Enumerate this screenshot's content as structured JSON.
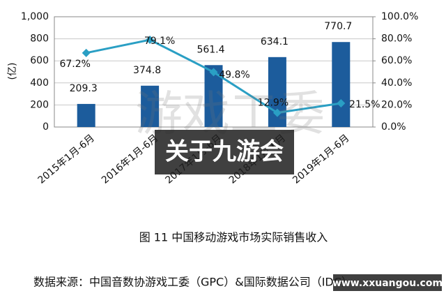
{
  "chart_data": {
    "type": "bar",
    "ylabel": "(亿)",
    "categories": [
      "2015年1月-6月",
      "2016年1月-6月",
      "2017年1月-6月",
      "2018年1月-6月",
      "2019年1月-6月"
    ],
    "series": [
      {
        "color": "#1c5c9c",
        "values": [
          209.3,
          374.8,
          561.4,
          634.1,
          770.7
        ]
      },
      {
        "type": "line",
        "axis": "y2",
        "color": "#2a9fc4",
        "values": [
          67.2,
          79.1,
          49.8,
          12.9,
          21.5
        ],
        "value_labels": [
          "67.2%",
          "79.1%",
          "49.8%",
          "12.9%",
          "21.5%"
        ]
      }
    ],
    "ylim": [
      0,
      1000
    ],
    "yticks": [
      0,
      200,
      400,
      600,
      800,
      {
        "value": 1000,
        "label": "1,000"
      }
    ],
    "y2lim": [
      0,
      100
    ],
    "y2ticks": [
      {
        "value": 0,
        "label": "0.0%"
      },
      {
        "value": 20,
        "label": "20.0%"
      },
      {
        "value": 40,
        "label": "40.0%"
      },
      {
        "value": 60,
        "label": "60.0%"
      },
      {
        "value": 80,
        "label": "80.0%"
      },
      {
        "value": 100,
        "label": "100.0%"
      }
    ],
    "grid": true,
    "caption": "图 11  中国移动游戏市场实际销售收入",
    "source": "数据来源：中国音数协游戏工委（GPC）&国际数据公司（IDC）"
  },
  "overlay": {
    "watermark": "游戏工委",
    "banner": "关于九游会",
    "website": "www.xxuangou.com"
  }
}
